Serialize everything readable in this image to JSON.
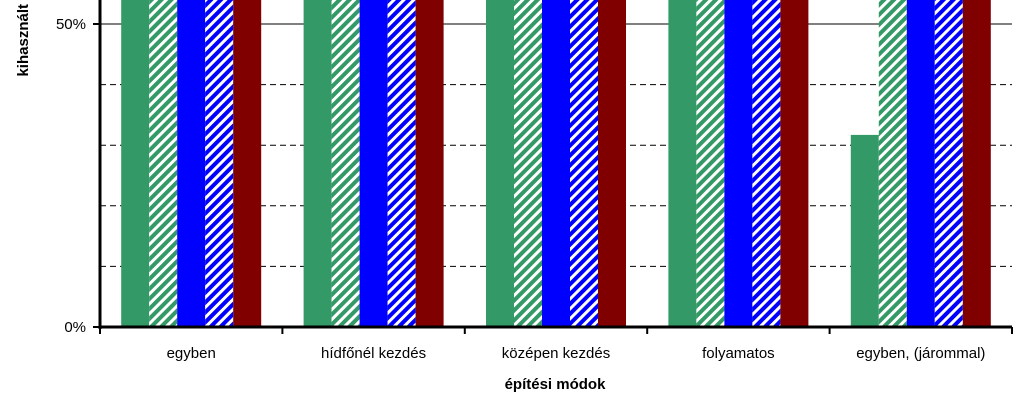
{
  "chart_data": {
    "type": "bar",
    "xlabel": "építési módok",
    "ylabel": "kihasznált",
    "categories": [
      "egyben",
      "hídfőnél kezdés",
      "középen kezdés",
      "folyamatos",
      "egyben, (járommal)"
    ],
    "ylim_visible": [
      0,
      0.54
    ],
    "y_ticks": [
      {
        "value": 0,
        "label": "0%"
      },
      {
        "value": 0.5,
        "label": "50%"
      }
    ],
    "grid": {
      "solid_at": [
        0.5
      ],
      "dashed_at": [
        0.1,
        0.2,
        0.3,
        0.4
      ]
    },
    "series": [
      {
        "color": "#339966",
        "pattern": "solid",
        "values": [
          0.54,
          0.54,
          0.54,
          0.54,
          0.317
        ]
      },
      {
        "color": "#339966",
        "pattern": "diagonal-hatch",
        "values": [
          0.54,
          0.54,
          0.54,
          0.54,
          0.54
        ]
      },
      {
        "color": "#0000ff",
        "pattern": "solid",
        "values": [
          0.54,
          0.54,
          0.54,
          0.54,
          0.54
        ]
      },
      {
        "color": "#0000ff",
        "pattern": "diagonal-hatch",
        "values": [
          0.54,
          0.54,
          0.54,
          0.54,
          0.54
        ]
      },
      {
        "color": "#800000",
        "pattern": "solid",
        "values": [
          0.54,
          0.54,
          0.54,
          0.54,
          0.54
        ]
      }
    ]
  }
}
